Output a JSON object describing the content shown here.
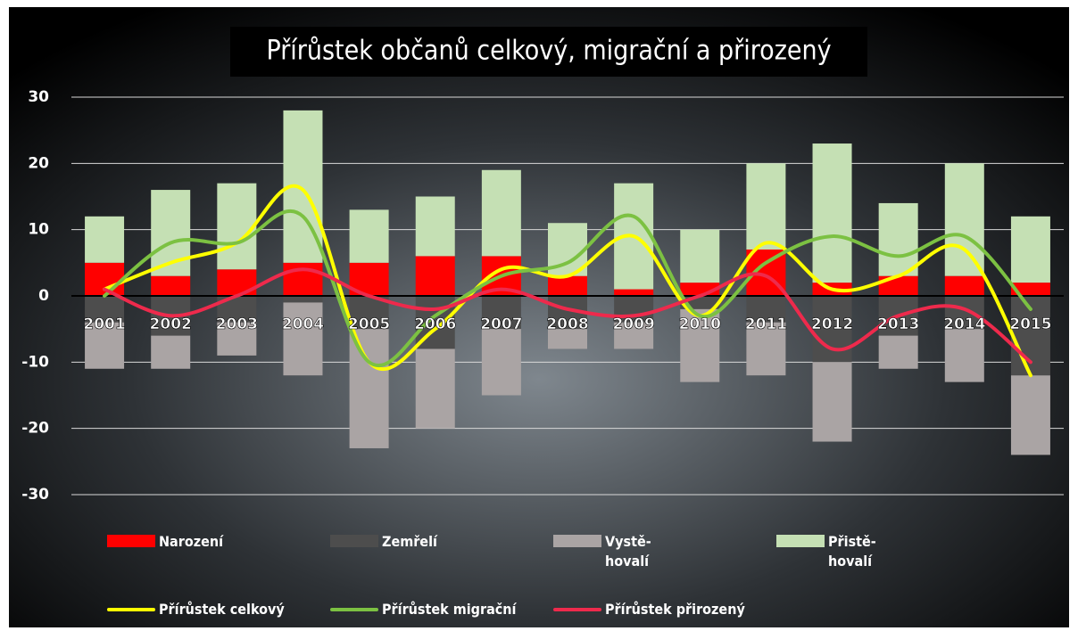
{
  "chart_data": {
    "type": "bar_line",
    "title": "Přírůstek občanů celkový, migrační a přirozený",
    "categories": [
      "2001",
      "2002",
      "2003",
      "2004",
      "2005",
      "2006",
      "2007",
      "2008",
      "2009",
      "2010",
      "2011",
      "2012",
      "2013",
      "2014",
      "2015"
    ],
    "ylim": [
      -30,
      30
    ],
    "yticks": [
      -30,
      -20,
      -10,
      0,
      10,
      20,
      30
    ],
    "grid": true,
    "series": [
      {
        "name": "Narození",
        "kind": "bar",
        "sign": "positive",
        "color": "#ff0000",
        "values": [
          5,
          3,
          4,
          5,
          5,
          6,
          6,
          3,
          1,
          2,
          7,
          2,
          3,
          3,
          2
        ]
      },
      {
        "name": "Zemřelí",
        "kind": "bar",
        "sign": "negative",
        "color": "#4d4d4d",
        "values": [
          -4,
          -6,
          -4,
          -1,
          -5,
          -8,
          -5,
          -5,
          -4,
          -2,
          -4,
          -10,
          -6,
          -5,
          -12
        ]
      },
      {
        "name": "Vystě-hovalí",
        "kind": "bar",
        "sign": "negative",
        "color": "#aaa4a4",
        "values": [
          -7,
          -5,
          -5,
          -11,
          -18,
          -12,
          -10,
          -3,
          -4,
          -11,
          -8,
          -12,
          -5,
          -8,
          -12
        ]
      },
      {
        "name": "Přistě-hovalí",
        "kind": "bar",
        "sign": "positive",
        "color": "#c5e0b4",
        "values": [
          7,
          13,
          13,
          23,
          8,
          9,
          13,
          8,
          16,
          8,
          13,
          21,
          11,
          17,
          10
        ]
      },
      {
        "name": "Přírůstek celkový",
        "kind": "line",
        "color": "#ffff00",
        "values": [
          1,
          5,
          8,
          16,
          -10,
          -5,
          4,
          3,
          9,
          -3,
          8,
          1,
          3,
          7,
          -12
        ]
      },
      {
        "name": "Přírůstek migrační",
        "kind": "line",
        "color": "#7cc142",
        "values": [
          0,
          8,
          8,
          12,
          -10,
          -3,
          3,
          5,
          12,
          -3,
          5,
          9,
          6,
          9,
          -2
        ]
      },
      {
        "name": "Přírůstek přirozený",
        "kind": "line",
        "color": "#ee2a4c",
        "values": [
          1,
          -3,
          0,
          4,
          0,
          -2,
          1,
          -2,
          -3,
          0,
          3,
          -8,
          -3,
          -2,
          -10
        ]
      }
    ]
  }
}
